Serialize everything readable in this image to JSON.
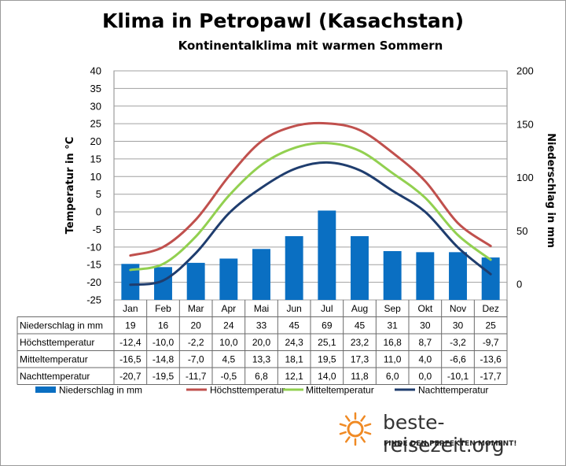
{
  "title": "Klima in Petropawl (Kasachstan)",
  "subtitle": "Kontinentalklima  mit warmen Sommern",
  "brand": {
    "name": "beste-reisezeit.org",
    "tagline": "FINDE DEN PERFEKTEN MOMENT!",
    "colors": {
      "sun": "#f08a24"
    }
  },
  "chart_data": {
    "type": "bar+line",
    "categories": [
      "Jan",
      "Feb",
      "Mar",
      "Apr",
      "Mai",
      "Jun",
      "Jul",
      "Aug",
      "Sep",
      "Okt",
      "Nov",
      "Dez"
    ],
    "y_left": {
      "label": "Temperatur in °C",
      "min": -25,
      "max": 40,
      "step": 5
    },
    "y_right": {
      "label": "Niederschlag in mm",
      "min": 0,
      "max": 200,
      "step": 50
    },
    "grid": true,
    "legend_position": "bottom",
    "series": [
      {
        "name": "Niederschlag in mm",
        "type": "bar",
        "axis": "right",
        "color": "#0a6fc2",
        "values": [
          19,
          16,
          20,
          24,
          33,
          45,
          69,
          45,
          31,
          30,
          30,
          25
        ],
        "labels": [
          "19",
          "16",
          "20",
          "24",
          "33",
          "45",
          "69",
          "45",
          "31",
          "30",
          "30",
          "25"
        ]
      },
      {
        "name": "Höchsttemperatur",
        "type": "line",
        "axis": "left",
        "color": "#c0504d",
        "values": [
          -12.4,
          -10.0,
          -2.2,
          10.0,
          20.0,
          24.3,
          25.1,
          23.2,
          16.8,
          8.7,
          -3.2,
          -9.7
        ],
        "labels": [
          "-12,4",
          "-10,0",
          "-2,2",
          "10,0",
          "20,0",
          "24,3",
          "25,1",
          "23,2",
          "16,8",
          "8,7",
          "-3,2",
          "-9,7"
        ]
      },
      {
        "name": "Mitteltemperatur",
        "type": "line",
        "axis": "left",
        "color": "#92d050",
        "values": [
          -16.5,
          -14.8,
          -7.0,
          4.5,
          13.3,
          18.1,
          19.5,
          17.3,
          11.0,
          4.0,
          -6.6,
          -13.6
        ],
        "labels": [
          "-16,5",
          "-14,8",
          "-7,0",
          "4,5",
          "13,3",
          "18,1",
          "19,5",
          "17,3",
          "11,0",
          "4,0",
          "-6,6",
          "-13,6"
        ]
      },
      {
        "name": "Nachttemperatur",
        "type": "line",
        "axis": "left",
        "color": "#1f3d6e",
        "values": [
          -20.7,
          -19.5,
          -11.7,
          -0.5,
          6.8,
          12.1,
          14.0,
          11.8,
          6.0,
          0.0,
          -10.1,
          -17.7
        ],
        "labels": [
          "-20,7",
          "-19,5",
          "-11,7",
          "-0,5",
          "6,8",
          "12,1",
          "14,0",
          "11,8",
          "6,0",
          "0,0",
          "-10,1",
          "-17,7"
        ]
      }
    ]
  }
}
